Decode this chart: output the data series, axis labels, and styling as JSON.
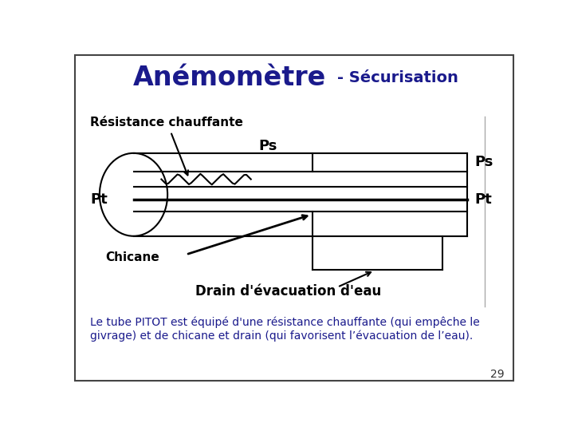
{
  "title_main": "Anémomètre",
  "title_sub": "- Sécurisation",
  "title_color": "#1a1a8c",
  "body_text_line1": "Le tube PITOT est équipé d'une résistance chauffante (qui empêche le",
  "body_text_line2": "givrage) et de chicane et drain (qui favorisent l’évacuation de l’eau).",
  "body_text_color": "#1a1a8c",
  "label_resistance": "Résistance chauffante",
  "label_chicane": "Chicane",
  "label_drain": "Drain d'évacuation d'eau",
  "label_ps_top": "Ps",
  "label_ps_right": "Ps",
  "label_pt_left": "Pt",
  "label_pt_right": "Pt",
  "page_number": "29",
  "diagram_color": "#000000",
  "bg_color": "#ffffff"
}
